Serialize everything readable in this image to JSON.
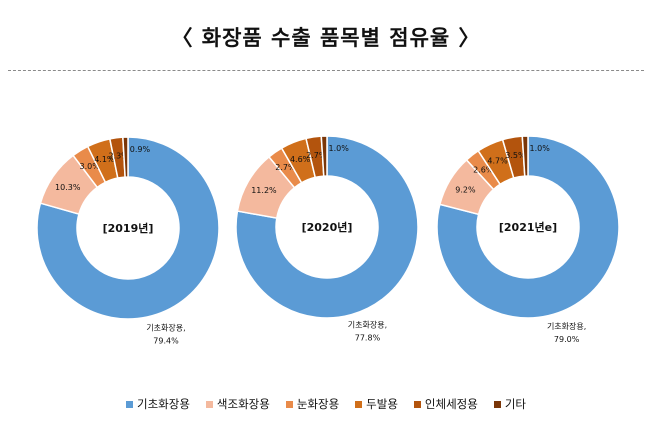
{
  "title": "〈 화장품 수출 품목별 점유율 〉",
  "chart_data": [
    {
      "type": "pie",
      "center_label": "[2019년]",
      "categories": [
        "기초화장용",
        "색조화장용",
        "눈화장용",
        "두발용",
        "인체세정용",
        "기타"
      ],
      "values": [
        79.4,
        10.3,
        3.0,
        4.1,
        2.3,
        0.9
      ],
      "value_labels": [
        "기초화장용,\n79.4%",
        "10.3%",
        "3.0%",
        "4.1%",
        "2.3%",
        "0.9%"
      ]
    },
    {
      "type": "pie",
      "center_label": "[2020년]",
      "categories": [
        "기초화장용",
        "색조화장용",
        "눈화장용",
        "두발용",
        "인체세정용",
        "기타"
      ],
      "values": [
        77.8,
        11.2,
        2.7,
        4.6,
        2.7,
        1.0
      ],
      "value_labels": [
        "기초화장용,\n77.8%",
        "11.2%",
        "2.7%",
        "4.6%",
        "2.7%",
        "1.0%"
      ]
    },
    {
      "type": "pie",
      "center_label": "[2021년e]",
      "categories": [
        "기초화장용",
        "색조화장용",
        "눈화장용",
        "두발용",
        "인체세정용",
        "기타"
      ],
      "values": [
        79.0,
        9.2,
        2.6,
        4.7,
        3.5,
        1.0
      ],
      "value_labels": [
        "기초화장용,\n79.0%",
        "9.2%",
        "2.6%",
        "4.7%",
        "3.5%",
        "1.0%"
      ]
    }
  ],
  "colors": [
    "#5b9bd5",
    "#f4b99e",
    "#e98b4a",
    "#d06f1a",
    "#b3540d",
    "#7a3608"
  ],
  "legend": {
    "items": [
      {
        "label": "기초화장용",
        "color": "#5b9bd5"
      },
      {
        "label": "색조화장용",
        "color": "#f4b99e"
      },
      {
        "label": "눈화장용",
        "color": "#e98b4a"
      },
      {
        "label": "두발용",
        "color": "#d06f1a"
      },
      {
        "label": "인체세정용",
        "color": "#b3540d"
      },
      {
        "label": "기타",
        "color": "#7a3608"
      }
    ]
  }
}
